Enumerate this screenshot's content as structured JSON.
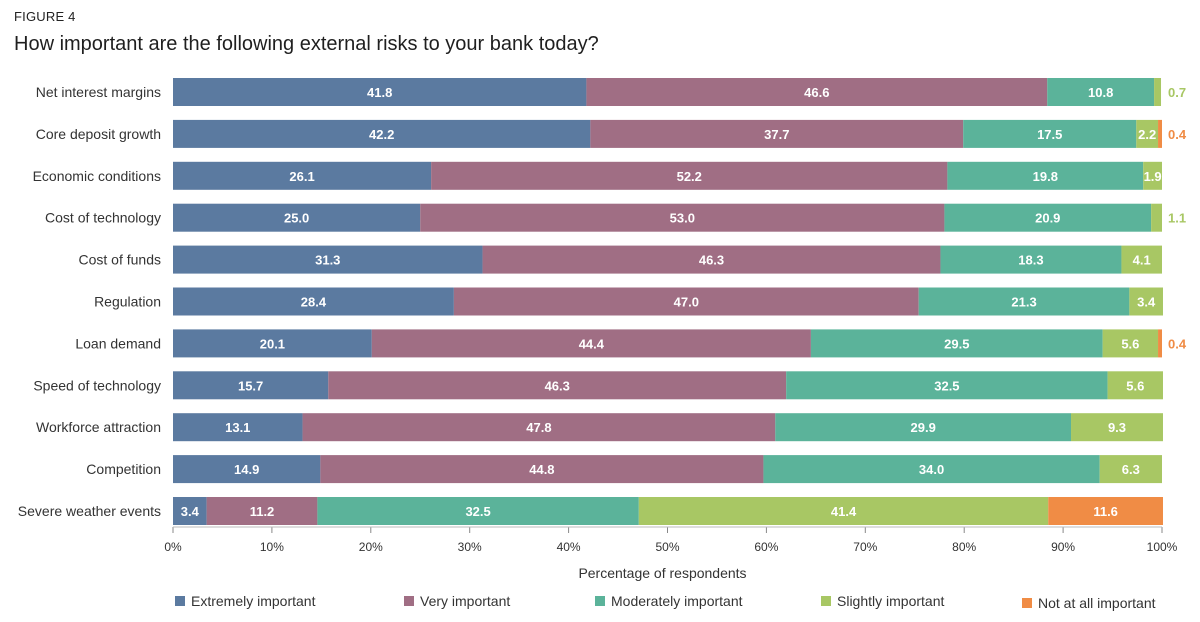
{
  "figure_label": "FIGURE 4",
  "chart_data": {
    "type": "bar",
    "orientation": "horizontal",
    "stacked": true,
    "title": "How important are the following external risks to your bank today?",
    "xlabel": "Percentage of respondents",
    "ylabel": "",
    "xlim": [
      0,
      100
    ],
    "xticks": [
      "0%",
      "10%",
      "20%",
      "30%",
      "40%",
      "50%",
      "60%",
      "70%",
      "80%",
      "90%",
      "100%"
    ],
    "categories": [
      "Net interest margins",
      "Core deposit growth",
      "Economic conditions",
      "Cost of technology",
      "Cost of funds",
      "Regulation",
      "Loan demand",
      "Speed of technology",
      "Workforce attraction",
      "Competition",
      "Severe weather events"
    ],
    "series": [
      {
        "name": "Extremely important",
        "color": "#5b7aa0",
        "values": [
          41.8,
          42.2,
          26.1,
          25.0,
          31.3,
          28.4,
          20.1,
          15.7,
          13.1,
          14.9,
          3.4
        ]
      },
      {
        "name": "Very important",
        "color": "#a06e84",
        "values": [
          46.6,
          37.7,
          52.2,
          53.0,
          46.3,
          47.0,
          44.4,
          46.3,
          47.8,
          44.8,
          11.2
        ]
      },
      {
        "name": "Moderately important",
        "color": "#5bb39a",
        "values": [
          10.8,
          17.5,
          19.8,
          20.9,
          18.3,
          21.3,
          29.5,
          32.5,
          29.9,
          34.0,
          32.5
        ]
      },
      {
        "name": "Slightly important",
        "color": "#a8c764",
        "values": [
          0.7,
          2.2,
          1.9,
          1.1,
          4.1,
          3.4,
          5.6,
          5.6,
          9.3,
          6.3,
          41.4
        ]
      },
      {
        "name": "Not at all important",
        "color": "#f08c45",
        "values": [
          0,
          0.4,
          0,
          0,
          0,
          0,
          0.4,
          0,
          0,
          0,
          11.6
        ]
      }
    ],
    "display_labels": [
      [
        "41.8",
        "46.6",
        "10.8",
        "0.7",
        ""
      ],
      [
        "42.2",
        "37.7",
        "17.5",
        "2.2",
        "0.4"
      ],
      [
        "26.1",
        "52.2",
        "19.8",
        "1.9",
        ""
      ],
      [
        "25.0",
        "53.0",
        "20.9",
        "1.1",
        ""
      ],
      [
        "31.3",
        "46.3",
        "18.3",
        "4.1",
        ""
      ],
      [
        "28.4",
        "47.0",
        "21.3",
        "3.4",
        ""
      ],
      [
        "20.1",
        "44.4",
        "29.5",
        "5.6",
        "0.4"
      ],
      [
        "15.7",
        "46.3",
        "32.5",
        "5.6",
        ""
      ],
      [
        "13.1",
        "47.8",
        "29.9",
        "9.3",
        ""
      ],
      [
        "14.9",
        "44.8",
        "34.0",
        "6.3",
        ""
      ],
      [
        "3.4",
        "11.2",
        "32.5",
        "41.4",
        "11.6"
      ]
    ],
    "outside_label_colors": {
      "Slightly important": "#a8c764",
      "Not at all important": "#f08c45"
    },
    "legend_position": "bottom",
    "grid": false
  }
}
